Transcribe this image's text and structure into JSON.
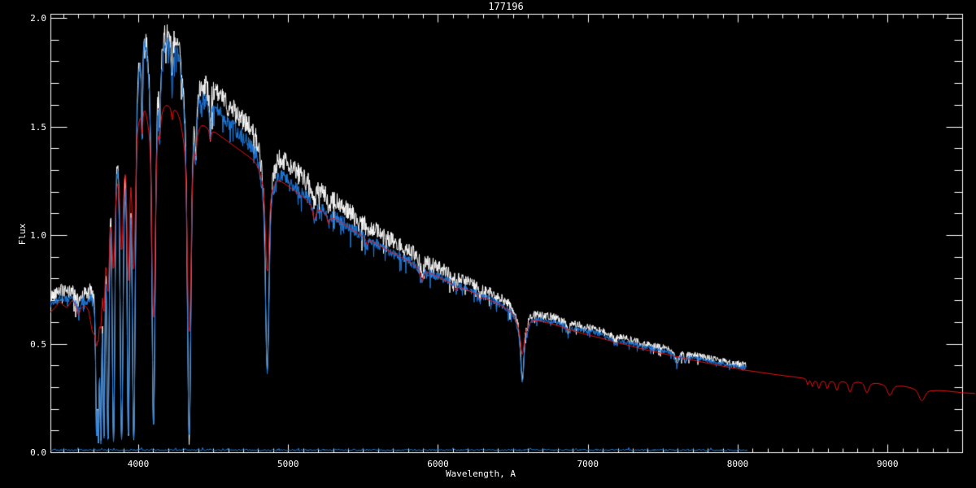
{
  "chart_data": {
    "type": "line",
    "title": "177196",
    "xlabel": "Wavelength, A",
    "ylabel": "Flux",
    "xlim": [
      3414,
      9498
    ],
    "ylim": [
      0,
      2.019
    ],
    "grid": false,
    "legend": "none",
    "background_color": "#000000",
    "axis_color": "#ffffff",
    "x_major_ticks": [
      4000,
      5000,
      6000,
      7000,
      8000,
      9000
    ],
    "x_tick_labels": [
      "4000",
      "5000",
      "6000",
      "7000",
      "8000",
      "9000"
    ],
    "x_minor_step": 100,
    "y_major_ticks": [
      0.0,
      0.5,
      1.0,
      1.5,
      2.0
    ],
    "y_tick_labels": [
      "0.0",
      "0.5",
      "1.0",
      "1.5",
      "2.0"
    ],
    "y_minor_step": 0.1,
    "series": [
      {
        "name": "observed-spectrum",
        "kind": "obs",
        "color": "#ffffff",
        "xrange": [
          3414,
          8057
        ],
        "seed": 42,
        "spike_prob": 0.05,
        "use_offset": true
      },
      {
        "name": "smoothed-spectrum",
        "kind": "obs",
        "color": "#1f7ce0",
        "xrange": [
          3414,
          8057
        ],
        "seed": 1337,
        "spike_prob": 0.09,
        "use_offset": false,
        "noise_scale": 0.65
      },
      {
        "name": "model-spectrum",
        "kind": "model",
        "color": "#ea1211",
        "xrange": [
          3414,
          9590
        ],
        "overflow_right": true
      },
      {
        "name": "error-spectrum",
        "kind": "error",
        "color": "#1f7ce0",
        "xrange": [
          3414,
          8070
        ],
        "seed": 5,
        "base": 0.01,
        "amp": 0.004
      }
    ],
    "continuum_obs": [
      [
        3414,
        0.68
      ],
      [
        3450,
        0.7
      ],
      [
        3480,
        0.715
      ],
      [
        3520,
        0.7
      ],
      [
        3560,
        0.715
      ],
      [
        3597,
        0.66
      ],
      [
        3630,
        0.7
      ],
      [
        3665,
        0.7
      ],
      [
        3694,
        0.72
      ],
      [
        3706,
        0.8
      ],
      [
        3718,
        0.95
      ],
      [
        3730,
        1.22
      ],
      [
        3745,
        1.42
      ],
      [
        3765,
        1.56
      ],
      [
        3790,
        1.62
      ],
      [
        3812,
        1.7
      ],
      [
        3840,
        1.74
      ],
      [
        3870,
        1.77
      ],
      [
        3910,
        1.8
      ],
      [
        3950,
        1.88
      ],
      [
        3980,
        1.93
      ],
      [
        4010,
        1.97
      ],
      [
        4045,
        2.0
      ],
      [
        4075,
        1.97
      ],
      [
        4115,
        1.93
      ],
      [
        4160,
        1.9
      ],
      [
        4210,
        1.88
      ],
      [
        4265,
        1.86
      ],
      [
        4310,
        1.82
      ],
      [
        4355,
        1.76
      ],
      [
        4400,
        1.67
      ],
      [
        4450,
        1.62
      ],
      [
        4500,
        1.6
      ],
      [
        4550,
        1.56
      ],
      [
        4600,
        1.52
      ],
      [
        4650,
        1.49
      ],
      [
        4700,
        1.45
      ],
      [
        4755,
        1.41
      ],
      [
        4805,
        1.37
      ],
      [
        4860,
        1.33
      ],
      [
        4925,
        1.29
      ],
      [
        5000,
        1.25
      ],
      [
        5080,
        1.2
      ],
      [
        5160,
        1.16
      ],
      [
        5250,
        1.12
      ],
      [
        5350,
        1.07
      ],
      [
        5450,
        1.02
      ],
      [
        5550,
        0.975
      ],
      [
        5650,
        0.935
      ],
      [
        5750,
        0.9
      ],
      [
        5850,
        0.865
      ],
      [
        5950,
        0.825
      ],
      [
        6050,
        0.795
      ],
      [
        6150,
        0.765
      ],
      [
        6250,
        0.735
      ],
      [
        6350,
        0.705
      ],
      [
        6450,
        0.675
      ],
      [
        6563,
        0.645
      ],
      [
        6650,
        0.625
      ],
      [
        6750,
        0.605
      ],
      [
        6850,
        0.585
      ],
      [
        6950,
        0.565
      ],
      [
        7050,
        0.55
      ],
      [
        7150,
        0.53
      ],
      [
        7250,
        0.51
      ],
      [
        7350,
        0.49
      ],
      [
        7450,
        0.475
      ],
      [
        7550,
        0.46
      ],
      [
        7650,
        0.445
      ],
      [
        7750,
        0.43
      ],
      [
        7850,
        0.415
      ],
      [
        7950,
        0.4
      ],
      [
        8060,
        0.39
      ]
    ],
    "continuum_model": [
      [
        3414,
        0.645
      ],
      [
        3445,
        0.665
      ],
      [
        3475,
        0.695
      ],
      [
        3495,
        0.68
      ],
      [
        3525,
        0.665
      ],
      [
        3558,
        0.7
      ],
      [
        3580,
        0.685
      ],
      [
        3600,
        0.63
      ],
      [
        3622,
        0.665
      ],
      [
        3645,
        0.675
      ],
      [
        3668,
        0.655
      ],
      [
        3694,
        0.555
      ],
      [
        3712,
        0.575
      ],
      [
        3730,
        0.72
      ],
      [
        3755,
        0.88
      ],
      [
        3785,
        1.05
      ],
      [
        3815,
        1.2
      ],
      [
        3845,
        1.32
      ],
      [
        3880,
        1.42
      ],
      [
        3915,
        1.5
      ],
      [
        3950,
        1.56
      ],
      [
        3990,
        1.6
      ],
      [
        4040,
        1.625
      ],
      [
        4090,
        1.625
      ],
      [
        4150,
        1.61
      ],
      [
        4210,
        1.595
      ],
      [
        4270,
        1.575
      ],
      [
        4330,
        1.555
      ],
      [
        4390,
        1.53
      ],
      [
        4450,
        1.5
      ],
      [
        4510,
        1.475
      ],
      [
        4570,
        1.445
      ],
      [
        4630,
        1.415
      ],
      [
        4690,
        1.385
      ],
      [
        4750,
        1.355
      ],
      [
        4810,
        1.325
      ],
      [
        4870,
        1.29
      ],
      [
        4930,
        1.26
      ],
      [
        5000,
        1.225
      ],
      [
        5080,
        1.185
      ],
      [
        5160,
        1.145
      ],
      [
        5250,
        1.105
      ],
      [
        5350,
        1.06
      ],
      [
        5450,
        1.015
      ],
      [
        5550,
        0.975
      ],
      [
        5650,
        0.935
      ],
      [
        5750,
        0.9
      ],
      [
        5850,
        0.86
      ],
      [
        5950,
        0.825
      ],
      [
        6050,
        0.79
      ],
      [
        6150,
        0.76
      ],
      [
        6250,
        0.73
      ],
      [
        6350,
        0.7
      ],
      [
        6450,
        0.672
      ],
      [
        6563,
        0.64
      ],
      [
        6650,
        0.617
      ],
      [
        6750,
        0.594
      ],
      [
        6850,
        0.572
      ],
      [
        6950,
        0.55
      ],
      [
        7050,
        0.532
      ],
      [
        7150,
        0.514
      ],
      [
        7250,
        0.496
      ],
      [
        7350,
        0.478
      ],
      [
        7450,
        0.462
      ],
      [
        7550,
        0.447
      ],
      [
        7650,
        0.432
      ],
      [
        7750,
        0.417
      ],
      [
        7850,
        0.403
      ],
      [
        7950,
        0.39
      ],
      [
        8050,
        0.378
      ],
      [
        8150,
        0.368
      ],
      [
        8250,
        0.358
      ],
      [
        8350,
        0.349
      ],
      [
        8430,
        0.342
      ],
      [
        8520,
        0.336
      ],
      [
        8620,
        0.332
      ],
      [
        8720,
        0.33
      ],
      [
        8820,
        0.328
      ],
      [
        8920,
        0.322
      ],
      [
        9020,
        0.315
      ],
      [
        9120,
        0.305
      ],
      [
        9220,
        0.297
      ],
      [
        9320,
        0.287
      ],
      [
        9420,
        0.28
      ],
      [
        9498,
        0.274
      ],
      [
        9600,
        0.27
      ]
    ],
    "offset_profile": [
      [
        3414,
        0.035
      ],
      [
        3700,
        0.03
      ],
      [
        4000,
        0.04
      ],
      [
        4300,
        0.06
      ],
      [
        4600,
        0.075
      ],
      [
        5000,
        0.08
      ],
      [
        5400,
        0.07
      ],
      [
        5800,
        0.05
      ],
      [
        6200,
        0.035
      ],
      [
        6563,
        0.025
      ],
      [
        6800,
        0.02
      ],
      [
        7200,
        0.015
      ],
      [
        8060,
        0.012
      ]
    ],
    "noise_profile": [
      [
        3414,
        0.03
      ],
      [
        3650,
        0.035
      ],
      [
        3720,
        0.05
      ],
      [
        4000,
        0.055
      ],
      [
        4300,
        0.055
      ],
      [
        4700,
        0.05
      ],
      [
        5100,
        0.045
      ],
      [
        5500,
        0.04
      ],
      [
        5900,
        0.033
      ],
      [
        6300,
        0.025
      ],
      [
        6700,
        0.02
      ],
      [
        7100,
        0.017
      ],
      [
        7600,
        0.015
      ],
      [
        8060,
        0.015
      ]
    ],
    "absorption_lines": [
      [
        3722,
        5,
        0.93,
        0.2
      ],
      [
        3734,
        5,
        0.94,
        0.24
      ],
      [
        3750,
        6,
        0.96,
        0.27
      ],
      [
        3771,
        6,
        0.96,
        0.29
      ],
      [
        3798,
        7,
        0.97,
        0.31
      ],
      [
        3835,
        8,
        0.97,
        0.33
      ],
      [
        3889,
        9,
        0.97,
        0.35
      ],
      [
        3934,
        7,
        0.96,
        0.45
      ],
      [
        3970,
        9,
        0.97,
        0.46
      ],
      [
        4026,
        4,
        0.25,
        0.08
      ],
      [
        4102,
        10,
        0.94,
        0.62
      ],
      [
        4144,
        4,
        0.18,
        0.05
      ],
      [
        4226,
        4,
        0.12,
        0.04
      ],
      [
        4340,
        11,
        0.96,
        0.65
      ],
      [
        4384,
        4,
        0.15,
        0.05
      ],
      [
        4481,
        4,
        0.12,
        0.04
      ],
      [
        4861,
        11,
        0.72,
        0.36
      ],
      [
        5175,
        9,
        0.07,
        0.06
      ],
      [
        5270,
        8,
        0.05,
        0.04
      ],
      [
        5528,
        6,
        0.04,
        0.03
      ],
      [
        5893,
        8,
        0.08,
        0.07
      ],
      [
        6122,
        6,
        0.04,
        0.03
      ],
      [
        6280,
        7,
        0.05,
        0.02
      ],
      [
        6563,
        9,
        0.42,
        0.2
      ],
      [
        6563,
        28,
        0.13,
        0.12
      ],
      [
        6870,
        8,
        0.07,
        0.01
      ],
      [
        7180,
        10,
        0.05,
        0.01
      ],
      [
        7594,
        8,
        0.12,
        0.0
      ],
      [
        7650,
        6,
        0.08,
        0.0
      ],
      [
        8467,
        5,
        0.0,
        0.08
      ],
      [
        8498,
        6,
        0.0,
        0.1
      ],
      [
        8542,
        7,
        0.0,
        0.12
      ],
      [
        8598,
        7,
        0.0,
        0.12
      ],
      [
        8662,
        8,
        0.0,
        0.14
      ],
      [
        8750,
        10,
        0.0,
        0.16
      ],
      [
        8862,
        12,
        0.0,
        0.16
      ],
      [
        9015,
        15,
        0.0,
        0.17
      ],
      [
        9229,
        18,
        0.0,
        0.2
      ]
    ]
  }
}
